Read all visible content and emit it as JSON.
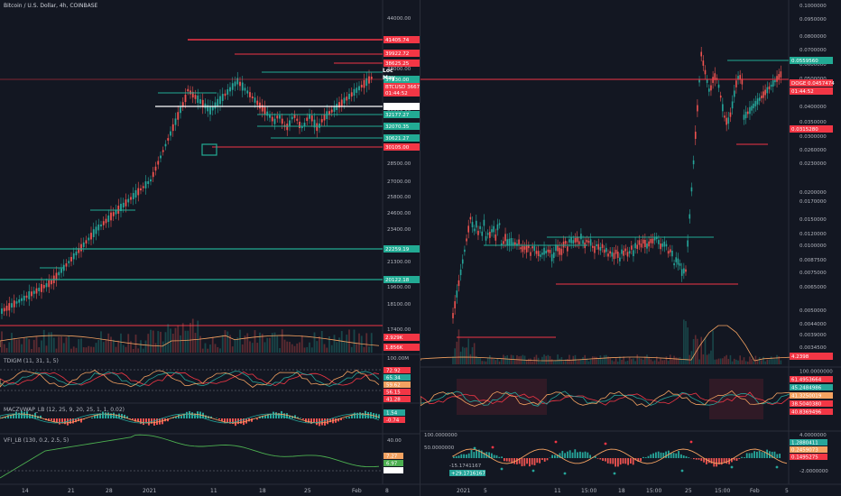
{
  "left": {
    "title": "Bitcoin / U.S. Dollar, 4h, COINBASE",
    "price_axis": [
      "44000.00",
      "41500.00",
      "38000.00",
      "35000.00",
      "32000.00",
      "28500.00",
      "27000.00",
      "25800.00",
      "24600.00",
      "23400.00",
      "21300.00",
      "19600.00",
      "18100.00",
      "17400.00",
      "100.00M"
    ],
    "price_badges": [
      {
        "text": "41405.74",
        "color": "#f23645"
      },
      {
        "text": "39922.72",
        "color": "#f23645"
      },
      {
        "text": "38625.25",
        "color": "#f23645"
      },
      {
        "text": "37930.00",
        "color": "#22ab94"
      },
      {
        "text": "BTCUSD 36679.27",
        "color": "#f23645"
      },
      {
        "text": "01:44:52",
        "color": "#f23645"
      },
      {
        "text": "34599.22",
        "color": "#ffffff"
      },
      {
        "text": "32177.27",
        "color": "#22ab94"
      },
      {
        "text": "32070.35",
        "color": "#22ab94"
      },
      {
        "text": "30621.27",
        "color": "#22ab94"
      },
      {
        "text": "30105.00",
        "color": "#f23645"
      },
      {
        "text": "22259.19",
        "color": "#22ab94"
      },
      {
        "text": "20122.18",
        "color": "#22ab94"
      },
      {
        "text": "2.929K",
        "color": "#f23645"
      },
      {
        "text": "1.856K",
        "color": "#f23645"
      }
    ],
    "lock_label": "Loc",
    "may_label": "May",
    "tdigm_label": "TDIGM (11, 31, 1, 5)",
    "tdigm_values": [
      "72.92",
      "65.34",
      "59.62",
      "56.15",
      "41.28"
    ],
    "macz_label": "MACZVWAP_LB (12, 25, 9, 20, 25, 1, 1, 0.02)",
    "macz_values": [
      "1.54",
      "-0.74"
    ],
    "vfi_label": "VFI_LB (130, 0.2, 2.5, 5)",
    "vfi_axis": [
      "40.00"
    ],
    "vfi_values": [
      "7.27",
      "6.97",
      "0.00"
    ],
    "x_axis": [
      "14",
      "21",
      "28",
      "2021",
      "11",
      "18",
      "25",
      "Feb",
      "8"
    ]
  },
  "right": {
    "price_axis": [
      "0.1000000",
      "0.0950000",
      "0.0800000",
      "0.0700000",
      "0.0600000",
      "0.0500000",
      "0.0460000",
      "0.0400000",
      "0.0350000",
      "0.0300000",
      "0.0260000",
      "0.0230000",
      "0.0200000",
      "0.0170000",
      "0.0150000",
      "0.0120000",
      "0.0100000",
      "0.0087500",
      "0.0075000",
      "0.0065000",
      "0.0050000",
      "0.0044000",
      "0.0039000",
      "0.0034500"
    ],
    "price_badges": [
      {
        "text": "0.0559560",
        "color": "#22ab94"
      },
      {
        "text": "DOGE 0.0457474",
        "color": "#f23645"
      },
      {
        "text": "01:44:52",
        "color": "#f23645"
      },
      {
        "text": "0.0315280",
        "color": "#f23645"
      },
      {
        "text": "4.2398",
        "color": "#f23645"
      }
    ],
    "tdi_values": [
      "100.0000000",
      "61.4953664",
      "45.2484986",
      "41.3250019",
      "38.5040380",
      "40.8369496"
    ],
    "macz_values": [
      "100.0000000",
      "50.0000000",
      "-15.1741167",
      "+29.1716167"
    ],
    "vfi_axis": [
      "4.0000000",
      "2.0000000",
      "-2.0000000"
    ],
    "vfi_values": [
      "1.2880411",
      "0.2459073",
      "0.1495275"
    ],
    "x_axis": [
      "2021",
      "5",
      "11",
      "15:00",
      "18",
      "15:00",
      "25",
      "15:00",
      "Feb",
      "5"
    ]
  }
}
